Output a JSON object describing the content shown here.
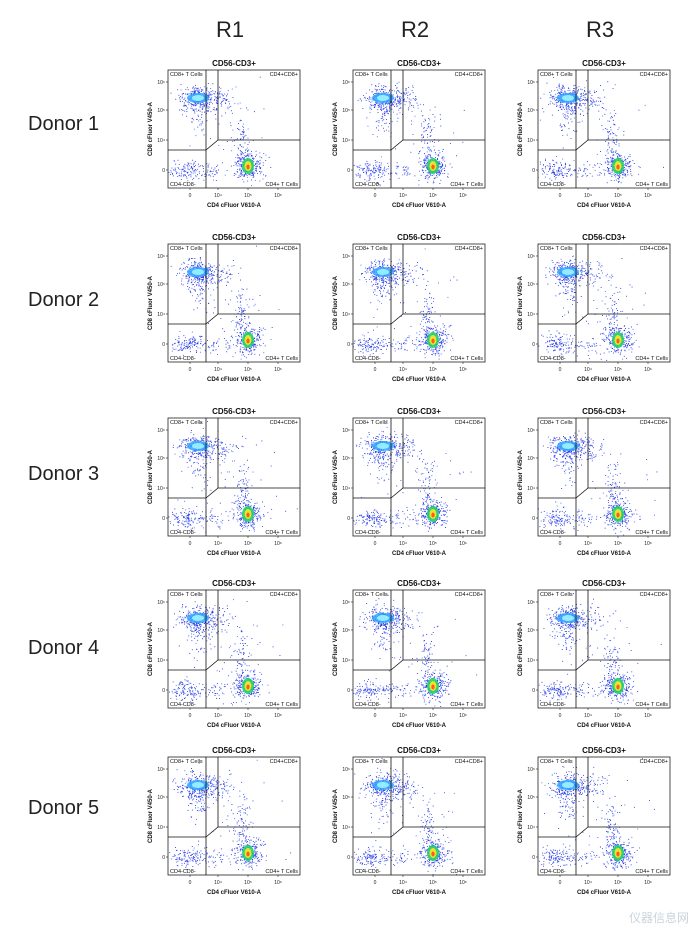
{
  "columns": [
    "R1",
    "R2",
    "R3"
  ],
  "rows": [
    "Donor 1",
    "Donor 2",
    "Donor 3",
    "Donor 4",
    "Donor 5"
  ],
  "chart_data": {
    "type": "scatter",
    "title": "CD56-CD3+",
    "xlabel": "CD4 cFluor V610-A",
    "ylabel": "CD8 cFluor V450-A",
    "x_ticks": [
      "0",
      "10⁴",
      "10⁵",
      "10⁶"
    ],
    "y_ticks": [
      "0",
      "10⁴",
      "10⁵",
      "10⁶"
    ],
    "quadrants": {
      "top_left": "CD8+ T Cells",
      "top_right": "CD4+CD8+",
      "bottom_left": "CD4-CD8-",
      "bottom_right": "CD4+ T Cells"
    },
    "panels": [
      {
        "donor": "Donor 1",
        "replicate": "R1"
      },
      {
        "donor": "Donor 1",
        "replicate": "R2"
      },
      {
        "donor": "Donor 1",
        "replicate": "R3"
      },
      {
        "donor": "Donor 2",
        "replicate": "R1"
      },
      {
        "donor": "Donor 2",
        "replicate": "R2"
      },
      {
        "donor": "Donor 2",
        "replicate": "R3"
      },
      {
        "donor": "Donor 3",
        "replicate": "R1"
      },
      {
        "donor": "Donor 3",
        "replicate": "R2"
      },
      {
        "donor": "Donor 3",
        "replicate": "R3"
      },
      {
        "donor": "Donor 4",
        "replicate": "R1"
      },
      {
        "donor": "Donor 4",
        "replicate": "R2"
      },
      {
        "donor": "Donor 4",
        "replicate": "R3"
      },
      {
        "donor": "Donor 5",
        "replicate": "R1"
      },
      {
        "donor": "Donor 5",
        "replicate": "R2"
      },
      {
        "donor": "Donor 5",
        "replicate": "R3"
      }
    ]
  },
  "watermark": "仪器信息网"
}
